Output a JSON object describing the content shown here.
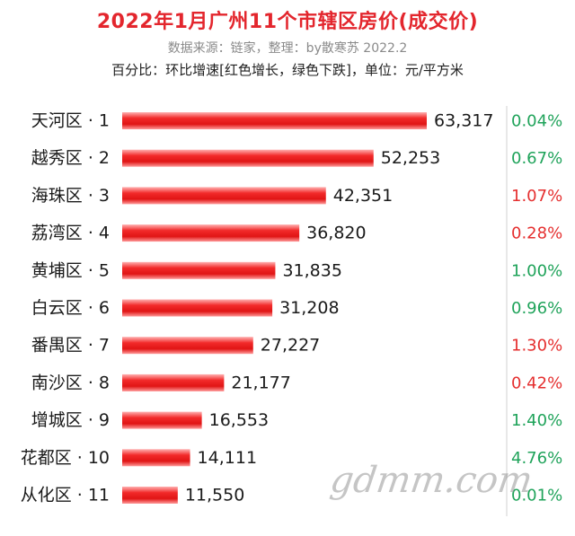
{
  "header": {
    "title": "2022年1月广州11个市辖区房价(成交价)",
    "source": "数据来源：链家，整理：by散寒苏 2022.2",
    "note": "百分比：环比增速[红色增长，绿色下跌]，单位：元/平方米"
  },
  "watermark": "gdmm.com",
  "colors": {
    "increase": "#e52f2f",
    "decrease": "#1fa35a",
    "bar": "#ee2020"
  },
  "chart_data": {
    "type": "bar",
    "orientation": "horizontal",
    "categories": [
      "天河区 · 1",
      "越秀区 · 2",
      "海珠区 · 3",
      "荔湾区 · 4",
      "黄埔区 · 5",
      "白云区 · 6",
      "番禺区 · 7",
      "南沙区 · 8",
      "增城区 · 9",
      "花都区 · 10",
      "从化区 · 11"
    ],
    "values": [
      63317,
      52253,
      42351,
      36820,
      31835,
      31208,
      27227,
      21177,
      16553,
      14111,
      11550
    ],
    "value_labels": [
      "63,317",
      "52,253",
      "42,351",
      "36,820",
      "31,835",
      "31,208",
      "27,227",
      "21,177",
      "16,553",
      "14,111",
      "11,550"
    ],
    "mom_change": [
      "0.04%",
      "0.67%",
      "1.07%",
      "0.28%",
      "1.00%",
      "0.96%",
      "1.30%",
      "0.42%",
      "1.40%",
      "4.76%",
      "0.01%"
    ],
    "mom_direction": [
      "down",
      "down",
      "up",
      "up",
      "down",
      "down",
      "up",
      "up",
      "down",
      "down",
      "down"
    ],
    "grid": false,
    "legend": "none"
  }
}
